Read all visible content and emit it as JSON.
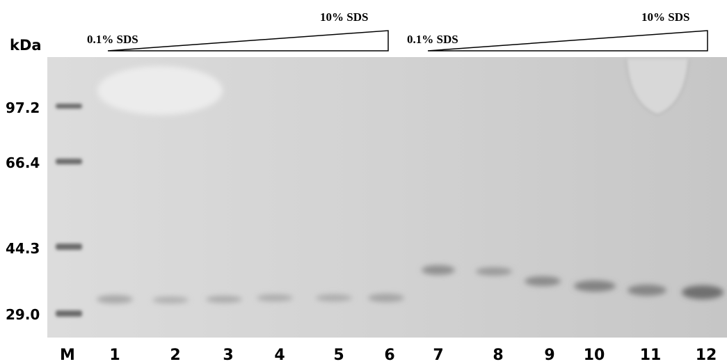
{
  "figure": {
    "unit_label": "kDa",
    "markers": [
      "97.2",
      "66.4",
      "44.3",
      "29.0"
    ],
    "lanes": [
      "M",
      "1",
      "2",
      "3",
      "4",
      "5",
      "6",
      "7",
      "8",
      "9",
      "10",
      "11",
      "12"
    ],
    "gradients": [
      {
        "start": "0.1% SDS",
        "end": "10% SDS"
      },
      {
        "start": "0.1% SDS",
        "end": "10% SDS"
      }
    ]
  }
}
